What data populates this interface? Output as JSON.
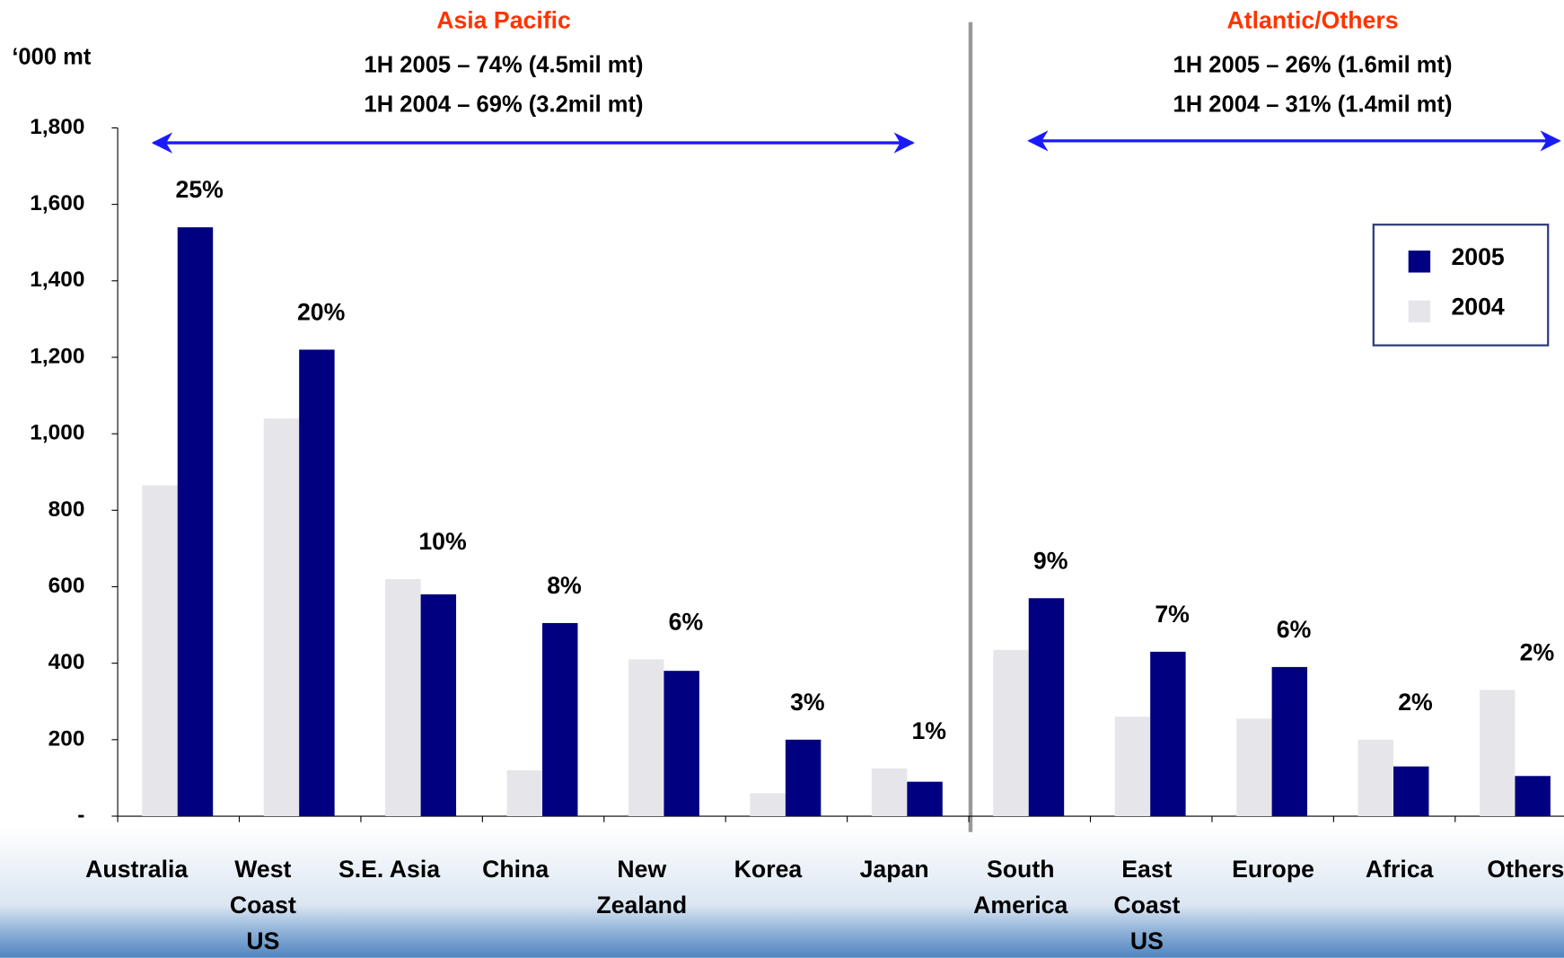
{
  "chart_data": {
    "type": "bar",
    "y_label": "‘000 mt",
    "region_headers": [
      {
        "title": "Asia Pacific",
        "lines": [
          "1H 2005 – 74% (4.5mil mt)",
          "1H 2004 – 69% (3.2mil mt)"
        ]
      },
      {
        "title": "Atlantic/Others",
        "lines": [
          "1H 2005 – 26% (1.6mil mt)",
          "1H 2004 – 31% (1.4mil mt)"
        ]
      }
    ],
    "categories": [
      "Australia",
      "West\nCoast\nUS",
      "S.E. Asia",
      "China",
      "New\nZealand",
      "Korea",
      "Japan",
      "South\nAmerica",
      "East\nCoast\nUS",
      "Europe",
      "Africa",
      "Others"
    ],
    "series": [
      {
        "name": "2004",
        "color": "#e6e6ea",
        "values": [
          865,
          1040,
          620,
          120,
          410,
          60,
          125,
          435,
          260,
          255,
          200,
          330
        ]
      },
      {
        "name": "2005",
        "color": "#000080",
        "values": [
          1540,
          1220,
          580,
          505,
          380,
          200,
          90,
          570,
          430,
          390,
          130,
          105
        ]
      }
    ],
    "share_labels": [
      "25%",
      "20%",
      "10%",
      "8%",
      "6%",
      "3%",
      "1%",
      "9%",
      "7%",
      "6%",
      "2%",
      "2%"
    ],
    "ylim": [
      0,
      1800
    ],
    "yticks": [
      {
        "value": 0,
        "label": "-"
      },
      200,
      400,
      600,
      800,
      {
        "value": 1000,
        "label": "1,000"
      },
      {
        "value": 1200,
        "label": "1,200"
      },
      {
        "value": 1400,
        "label": "1,400"
      },
      {
        "value": 1600,
        "label": "1,600"
      },
      {
        "value": 1800,
        "label": "1,800"
      }
    ],
    "legend": "upper right"
  }
}
